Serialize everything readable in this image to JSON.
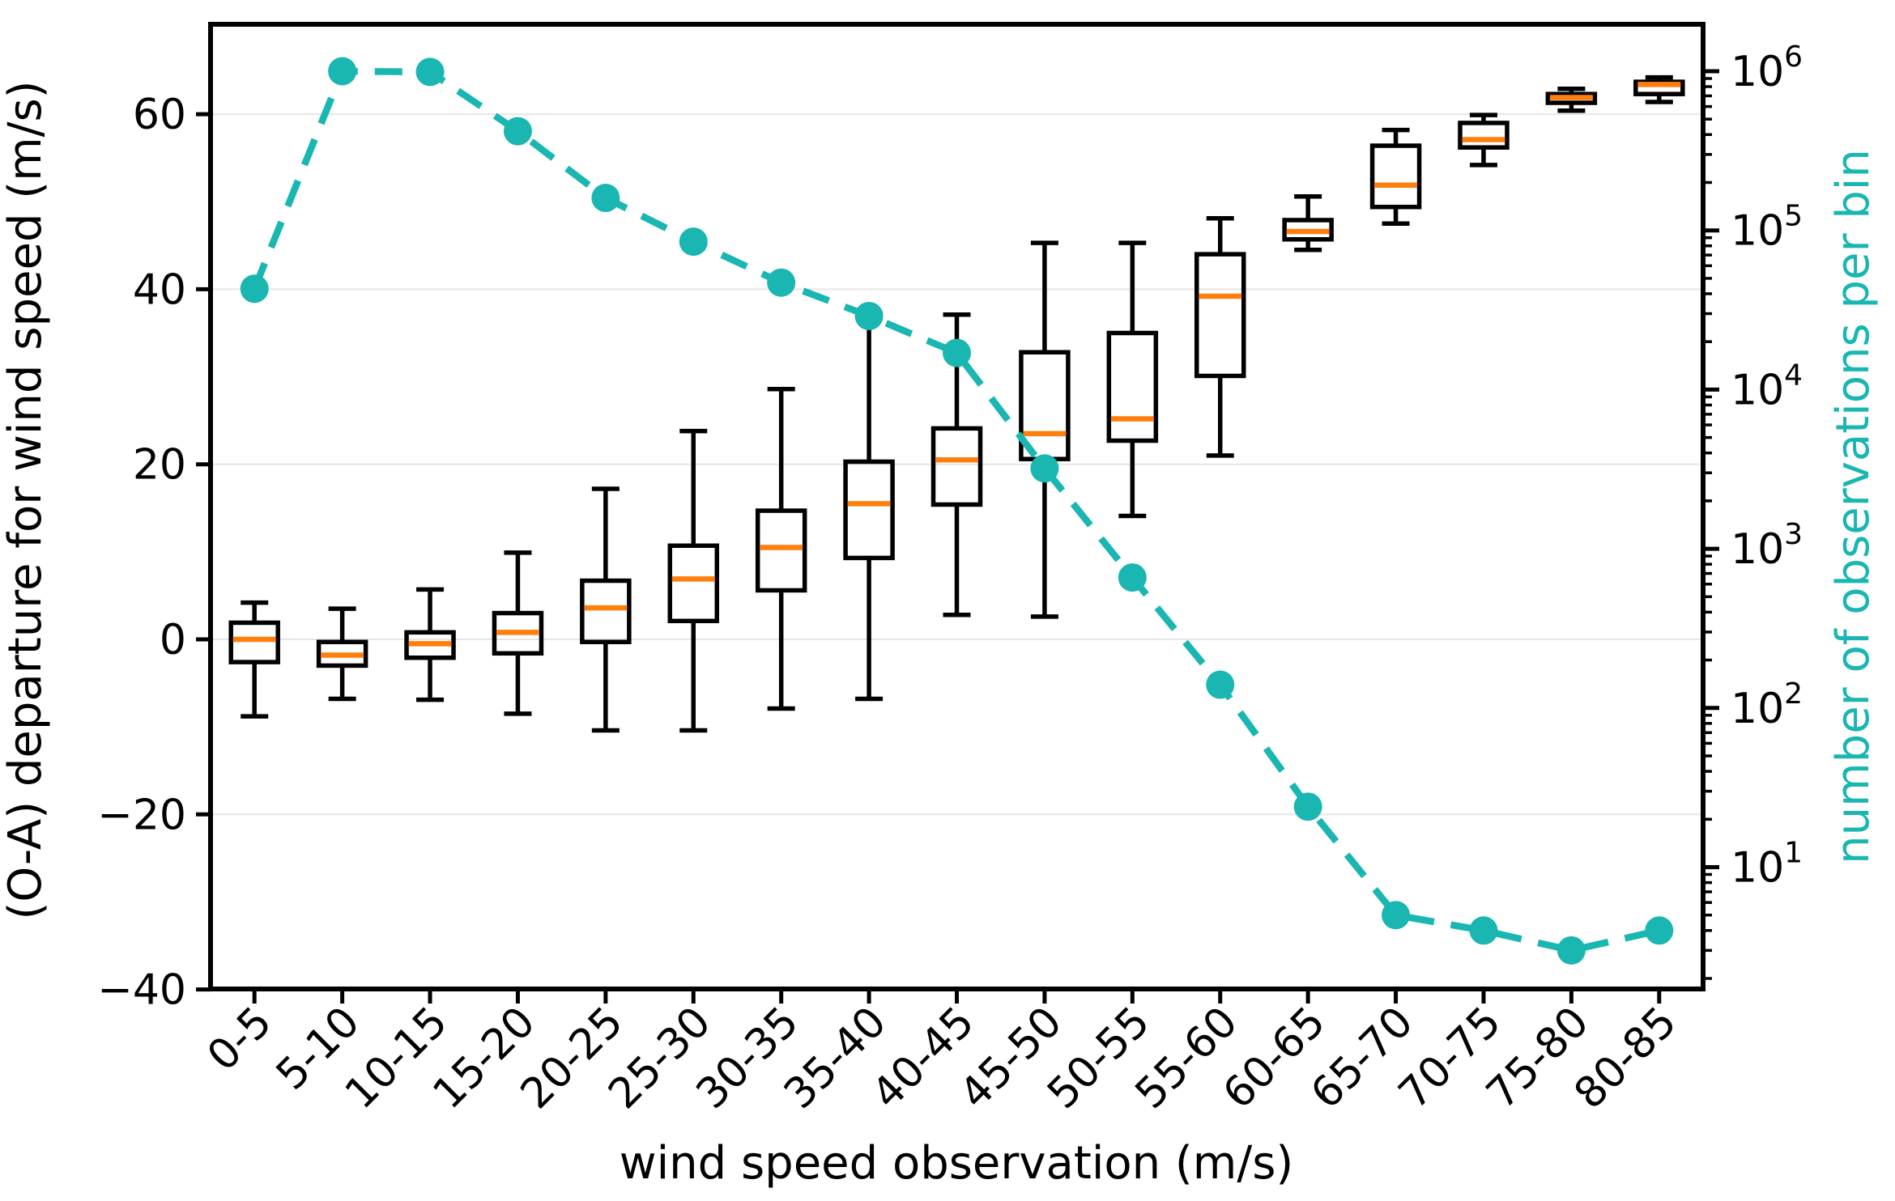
{
  "chart_data": {
    "type": "boxplot+line",
    "title": "",
    "categories": [
      "0-5",
      "5-10",
      "10-15",
      "15-20",
      "20-25",
      "25-30",
      "30-35",
      "35-40",
      "40-45",
      "45-50",
      "50-55",
      "55-60",
      "60-65",
      "65-70",
      "70-75",
      "75-80",
      "80-85"
    ],
    "box_series": {
      "name": "(O-A) departure boxplots",
      "whisker_low": [
        -8.8,
        -6.8,
        -6.9,
        -8.5,
        -10.4,
        -10.4,
        -7.9,
        -6.8,
        2.8,
        2.6,
        14.1,
        21.0,
        44.5,
        47.5,
        54.2,
        60.4,
        61.4
      ],
      "q1": [
        -2.6,
        -3.0,
        -2.1,
        -1.6,
        -0.3,
        2.1,
        5.6,
        9.3,
        15.4,
        20.6,
        22.7,
        30.1,
        45.7,
        49.4,
        56.2,
        61.3,
        62.3
      ],
      "median": [
        0.0,
        -1.8,
        -0.5,
        0.8,
        3.6,
        6.9,
        10.5,
        15.5,
        20.5,
        23.5,
        25.2,
        39.2,
        46.6,
        51.9,
        57.1,
        61.9,
        63.4
      ],
      "q3": [
        1.9,
        -0.3,
        0.8,
        3.0,
        6.7,
        10.7,
        14.7,
        20.3,
        24.1,
        32.8,
        35.0,
        44.0,
        47.9,
        56.4,
        59.0,
        62.3,
        63.7
      ],
      "whisker_high": [
        4.2,
        3.5,
        5.7,
        9.9,
        17.2,
        23.8,
        28.6,
        37.2,
        37.1,
        45.3,
        45.3,
        48.1,
        50.6,
        58.2,
        59.9,
        62.9,
        64.2
      ]
    },
    "line_series": {
      "name": "number of observations per bin",
      "values": [
        43000,
        1000000,
        990000,
        420000,
        160000,
        85000,
        47000,
        29000,
        17000,
        3200,
        660,
        140,
        24,
        5,
        4,
        3,
        4
      ]
    },
    "left_axis": {
      "label": "(O-A) departure for wind speed (m/s)",
      "ticks": [
        60,
        40,
        20,
        0,
        -20,
        -40
      ],
      "tick_labels": [
        "60",
        "40",
        "20",
        "0",
        "−20",
        "−40"
      ],
      "range": [
        -40.6,
        70.3
      ],
      "grid": true
    },
    "right_axis": {
      "label": "number of observations per bin",
      "scale": "log",
      "tick_exponents": [
        6,
        5,
        4,
        3,
        2,
        1
      ],
      "tick_base": "10",
      "range_log10": [
        0.23,
        6.29
      ]
    },
    "x_axis": {
      "label": "wind speed observation (m/s)",
      "tick_rotation_deg": 45
    },
    "legend": "none",
    "colors": {
      "box_line": "#000000",
      "median": "#ff7f0e",
      "count_line": "#19b6b2",
      "grid": "#e6e6e6",
      "background": "#ffffff"
    }
  }
}
